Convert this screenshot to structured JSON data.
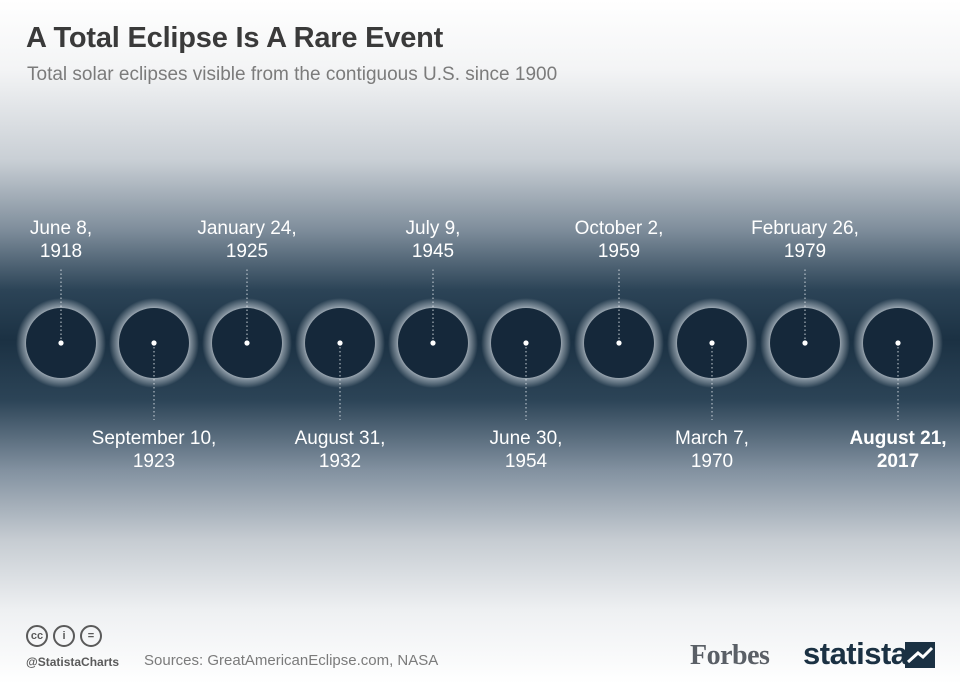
{
  "header": {
    "title": "A Total Eclipse Is A Rare Event",
    "subtitle": "Total solar eclipses visible from the contiguous U.S. since 1900"
  },
  "chart_data": {
    "type": "timeline",
    "title": "A Total Eclipse Is A Rare Event",
    "subtitle": "Total solar eclipses visible from the contiguous U.S. since 1900",
    "events": [
      {
        "line1": "June 8,",
        "line2": "1918",
        "label_position": "above",
        "highlight": false
      },
      {
        "line1": "September 10,",
        "line2": "1923",
        "label_position": "below",
        "highlight": false
      },
      {
        "line1": "January 24,",
        "line2": "1925",
        "label_position": "above",
        "highlight": false
      },
      {
        "line1": "August 31,",
        "line2": "1932",
        "label_position": "below",
        "highlight": false
      },
      {
        "line1": "July 9,",
        "line2": "1945",
        "label_position": "above",
        "highlight": false
      },
      {
        "line1": "June 30,",
        "line2": "1954",
        "label_position": "below",
        "highlight": false
      },
      {
        "line1": "October 2,",
        "line2": "1959",
        "label_position": "above",
        "highlight": false
      },
      {
        "line1": "March 7,",
        "line2": "1970",
        "label_position": "below",
        "highlight": false
      },
      {
        "line1": "February 26,",
        "line2": "1979",
        "label_position": "above",
        "highlight": false
      },
      {
        "line1": "August 21,",
        "line2": "2017",
        "label_position": "below",
        "highlight": true
      }
    ],
    "colors": {
      "disc": "#15283a",
      "glow": "#ffffff",
      "label": "#ffffff",
      "connector": "#e6ebf0"
    }
  },
  "footer": {
    "cc_icons": [
      "cc",
      "i",
      "="
    ],
    "handle": "@StatistaCharts",
    "sources": "Sources: GreatAmericanEclipse.com, NASA",
    "forbes_logo": "Forbes",
    "statista_logo": "statista"
  }
}
